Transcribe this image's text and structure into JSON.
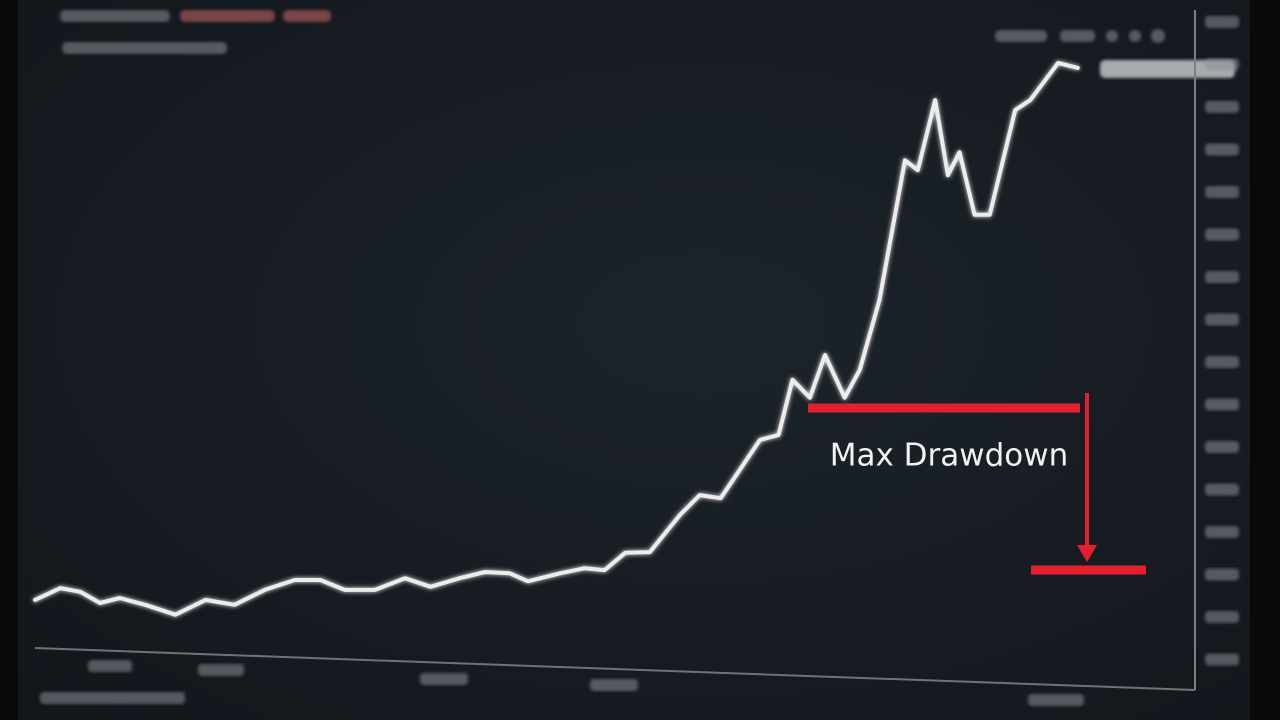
{
  "chart_data": {
    "type": "line",
    "annotation": "Max Drawdown",
    "x": [
      0,
      2.2,
      3.9,
      5.6,
      7.3,
      9.5,
      12.1,
      14.7,
      17.2,
      19.8,
      22.4,
      24.6,
      26.7,
      29.3,
      31.9,
      34.1,
      36.6,
      38.8,
      40.9,
      42.5,
      45.3,
      47.4,
      49.1,
      50.9,
      53.0,
      55.6,
      57.3,
      59.1,
      62.5,
      64.1,
      65.3,
      66.8,
      68.1,
      69.8,
      71.1,
      72.8,
      75.0,
      76.1,
      77.6,
      78.7,
      79.7,
      81.0,
      82.3,
      84.5,
      85.8,
      88.2,
      89.9
    ],
    "values": [
      9.7,
      11.6,
      11.0,
      9.2,
      10.0,
      8.9,
      7.3,
      9.7,
      8.9,
      11.3,
      12.9,
      12.9,
      11.3,
      11.3,
      13.2,
      11.8,
      13.2,
      14.2,
      14.0,
      12.7,
      14.0,
      14.8,
      14.5,
      17.3,
      17.4,
      23.4,
      26.6,
      26.1,
      35.5,
      36.3,
      45.2,
      42.3,
      49.2,
      42.3,
      46.8,
      58.1,
      80.6,
      79.0,
      90.3,
      78.2,
      81.9,
      71.8,
      71.8,
      88.7,
      90.3,
      96.3,
      95.5
    ],
    "color": "#ececec",
    "xlim": [
      0,
      100
    ],
    "ylim": [
      0,
      100
    ]
  }
}
